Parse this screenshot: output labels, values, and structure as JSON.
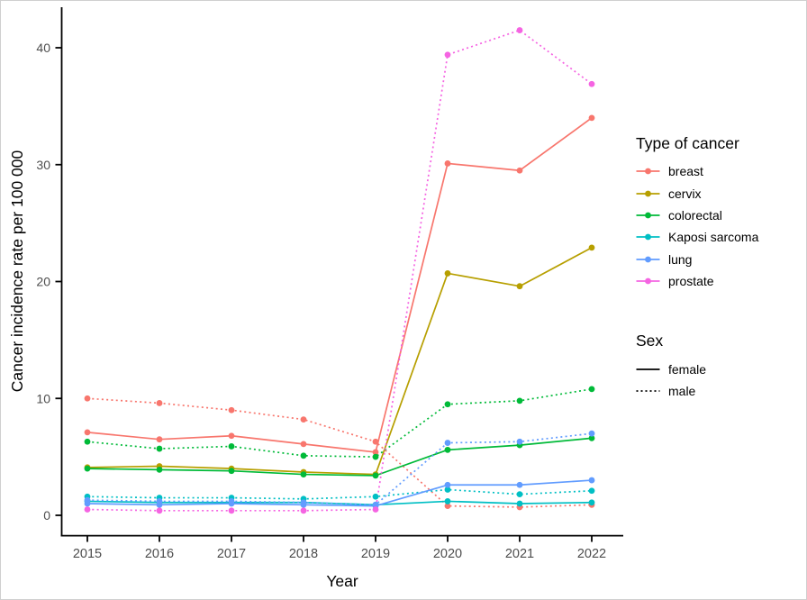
{
  "chart_data": {
    "type": "line",
    "title": "",
    "xlabel": "Year",
    "ylabel": "Cancer incidence rate per 100 000",
    "x": [
      2015,
      2016,
      2017,
      2018,
      2019,
      2020,
      2021,
      2022
    ],
    "yticks": [
      0,
      10,
      20,
      30,
      40
    ],
    "ylim": [
      0,
      43
    ],
    "grid": false,
    "legend_position": "right",
    "axis_color": "#000000",
    "tick_label_color": "#4d4d4d",
    "series": [
      {
        "name": "breast-female",
        "cancer": "breast",
        "sex": "female",
        "color": "#F8766D",
        "linetype": "solid",
        "values": [
          7.1,
          6.5,
          6.8,
          6.1,
          5.4,
          30.1,
          29.5,
          34.0
        ]
      },
      {
        "name": "breast-male",
        "cancer": "breast",
        "sex": "male",
        "color": "#F8766D",
        "linetype": "dotted",
        "values": [
          10.0,
          9.6,
          9.0,
          8.2,
          6.3,
          0.8,
          0.7,
          0.9
        ]
      },
      {
        "name": "cervix-female",
        "cancer": "cervix",
        "sex": "female",
        "color": "#B79F00",
        "linetype": "solid",
        "values": [
          4.1,
          4.2,
          4.0,
          3.7,
          3.5,
          20.7,
          19.6,
          22.9
        ]
      },
      {
        "name": "colorectal-female",
        "cancer": "colorectal",
        "sex": "female",
        "color": "#00BA38",
        "linetype": "solid",
        "values": [
          4.0,
          3.9,
          3.8,
          3.5,
          3.4,
          5.6,
          6.0,
          6.6
        ]
      },
      {
        "name": "colorectal-male",
        "cancer": "colorectal",
        "sex": "male",
        "color": "#00BA38",
        "linetype": "dotted",
        "values": [
          6.3,
          5.7,
          5.9,
          5.1,
          5.0,
          9.5,
          9.8,
          10.8
        ]
      },
      {
        "name": "kaposi-sarcoma-female",
        "cancer": "Kaposi sarcoma",
        "sex": "female",
        "color": "#00BFC4",
        "linetype": "solid",
        "values": [
          1.2,
          1.1,
          1.1,
          1.1,
          0.9,
          1.2,
          1.0,
          1.1
        ]
      },
      {
        "name": "kaposi-sarcoma-male",
        "cancer": "Kaposi sarcoma",
        "sex": "male",
        "color": "#00BFC4",
        "linetype": "dotted",
        "values": [
          1.6,
          1.5,
          1.5,
          1.4,
          1.6,
          2.2,
          1.8,
          2.1
        ]
      },
      {
        "name": "lung-female",
        "cancer": "lung",
        "sex": "female",
        "color": "#619CFF",
        "linetype": "solid",
        "values": [
          1.0,
          0.9,
          1.0,
          0.9,
          0.8,
          2.6,
          2.6,
          3.0
        ]
      },
      {
        "name": "lung-male",
        "cancer": "lung",
        "sex": "male",
        "color": "#619CFF",
        "linetype": "dotted",
        "values": [
          1.3,
          1.2,
          1.2,
          1.1,
          0.9,
          6.2,
          6.3,
          7.0
        ]
      },
      {
        "name": "prostate-male",
        "cancer": "prostate",
        "sex": "male",
        "color": "#F564E2",
        "linetype": "dotted",
        "values": [
          0.5,
          0.4,
          0.4,
          0.4,
          0.5,
          39.4,
          41.5,
          36.9
        ]
      }
    ],
    "legend": {
      "type_title": "Type of cancer",
      "types": [
        {
          "label": "breast",
          "color": "#F8766D"
        },
        {
          "label": "cervix",
          "color": "#B79F00"
        },
        {
          "label": "colorectal",
          "color": "#00BA38"
        },
        {
          "label": "Kaposi sarcoma",
          "color": "#00BFC4"
        },
        {
          "label": "lung",
          "color": "#619CFF"
        },
        {
          "label": "prostate",
          "color": "#F564E2"
        }
      ],
      "sex_title": "Sex",
      "sexes": [
        {
          "label": "female",
          "linetype": "solid"
        },
        {
          "label": "male",
          "linetype": "dotted"
        }
      ]
    }
  }
}
